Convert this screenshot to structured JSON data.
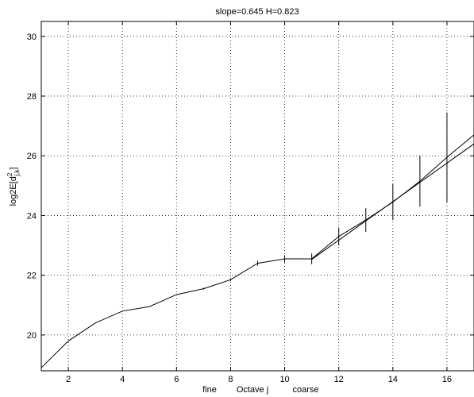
{
  "chart_data": {
    "type": "line",
    "title": "slope=0.645 H=0.823",
    "xlabel": {
      "left": "fine",
      "center": "Octave j",
      "right": "coarse"
    },
    "ylabel": {
      "base": "log2E[d",
      "sup": "2",
      "sub": "j,k",
      "close": "]"
    },
    "xlim": [
      1,
      17
    ],
    "ylim": [
      18.8,
      30.5
    ],
    "xticks": [
      2,
      4,
      6,
      8,
      10,
      12,
      14,
      16
    ],
    "yticks": [
      20,
      22,
      24,
      26,
      28,
      30
    ],
    "grid": true,
    "series": [
      {
        "style": "line-with-errorbars",
        "x": [
          1,
          2,
          3,
          4,
          5,
          6,
          7,
          8,
          9,
          10,
          11,
          12,
          13,
          14,
          15,
          16,
          17
        ],
        "y": [
          18.9,
          19.8,
          20.4,
          20.8,
          20.95,
          21.35,
          21.55,
          21.85,
          22.4,
          22.55,
          22.55,
          23.3,
          23.85,
          24.45,
          25.15,
          25.95,
          26.7
        ],
        "err": [
          0,
          0,
          0,
          0,
          0,
          0,
          0.03,
          0.05,
          0.08,
          0.12,
          0.18,
          0.3,
          0.4,
          0.6,
          0.85,
          1.5,
          0
        ]
      },
      {
        "style": "regression-fit",
        "x": [
          11,
          17
        ],
        "y": [
          22.53,
          26.4
        ]
      }
    ]
  }
}
